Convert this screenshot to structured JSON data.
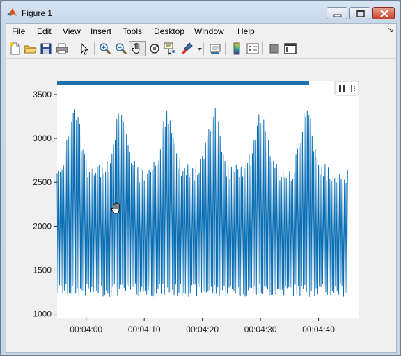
{
  "window": {
    "title": "Figure 1"
  },
  "menu": [
    "File",
    "Edit",
    "View",
    "Insert",
    "Tools",
    "Desktop",
    "Window",
    "Help"
  ],
  "toolbar": {
    "buttons": [
      "new-figure",
      "open-file",
      "save-figure",
      "print-figure",
      "edit-plot",
      "zoom-in",
      "zoom-out",
      "pan",
      "rotate-3d",
      "data-cursor",
      "brush",
      "link-plot",
      "insert-colorbar",
      "insert-legend",
      "hide-plot-tools",
      "show-plot-tools"
    ],
    "active": "pan"
  },
  "colors": {
    "line": "#0a6eb4",
    "axes_bg": "#ffffff",
    "figure_bg": "#f0f0f0"
  },
  "chart_data": {
    "type": "line",
    "title": "",
    "xlabel": "",
    "ylabel": "",
    "xlim": [
      "00:03:55",
      "00:04:47"
    ],
    "ylim": [
      950,
      3650
    ],
    "x_ticks": [
      "00:04:00",
      "00:04:10",
      "00:04:20",
      "00:04:30",
      "00:04:40"
    ],
    "y_ticks": [
      "1000",
      "1500",
      "2000",
      "2500",
      "3000",
      "3500"
    ],
    "grid": false,
    "series": [
      {
        "name": "",
        "x_start": "00:03:55",
        "x_end": "00:04:45",
        "band_min": [
          1200,
          1350
        ],
        "band_max": [
          2700,
          3380
        ],
        "peak_times": [
          "00:03:58",
          "00:04:06",
          "00:04:14",
          "00:04:22",
          "00:04:30",
          "00:04:38"
        ],
        "peak_values": [
          3380,
          3370,
          3370,
          3360,
          3370,
          3380
        ]
      }
    ]
  }
}
